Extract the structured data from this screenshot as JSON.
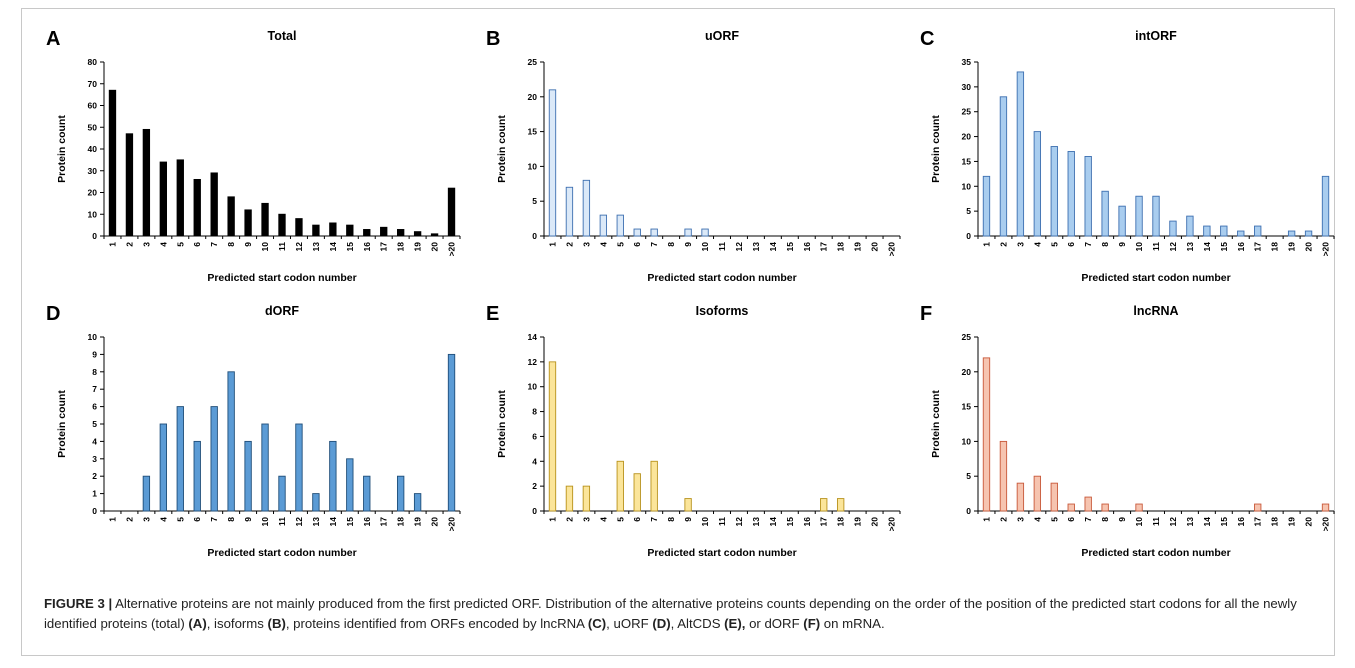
{
  "caption": {
    "label": "FIGURE 3 |",
    "segments": [
      {
        "t": " Alternative proteins are not mainly produced from the first predicted ORF. Distribution of the alternative proteins counts depending on the order of the position of the predicted start codons for all the newly identified proteins (total) ",
        "b": false
      },
      {
        "t": "(A)",
        "b": true
      },
      {
        "t": ", isoforms ",
        "b": false
      },
      {
        "t": "(B)",
        "b": true
      },
      {
        "t": ", proteins identified from ORFs encoded by lncRNA ",
        "b": false
      },
      {
        "t": "(C)",
        "b": true
      },
      {
        "t": ", uORF ",
        "b": false
      },
      {
        "t": "(D)",
        "b": true
      },
      {
        "t": ", AltCDS ",
        "b": false
      },
      {
        "t": "(E),",
        "b": true
      },
      {
        "t": " or dORF ",
        "b": false
      },
      {
        "t": "(F)",
        "b": true
      },
      {
        "t": " on mRNA.",
        "b": false
      }
    ]
  },
  "chart_data": [
    {
      "panel": "A",
      "type": "bar",
      "title": "Total",
      "xlabel": "Predicted start codon number",
      "ylabel": "Protein count",
      "categories": [
        "1",
        "2",
        "3",
        "4",
        "5",
        "6",
        "7",
        "8",
        "9",
        "10",
        "11",
        "12",
        "13",
        "14",
        "15",
        "16",
        "17",
        "18",
        "19",
        "20",
        ">20"
      ],
      "values": [
        67,
        47,
        49,
        34,
        35,
        26,
        29,
        18,
        12,
        15,
        10,
        8,
        5,
        6,
        5,
        3,
        4,
        3,
        2,
        1,
        22
      ],
      "ylim": [
        0,
        80
      ],
      "ytick_step": 10,
      "fill": "#000000",
      "stroke": "#000000"
    },
    {
      "panel": "B",
      "type": "bar",
      "title": "uORF",
      "xlabel": "Predicted start codon number",
      "ylabel": "Protein count",
      "categories": [
        "1",
        "2",
        "3",
        "4",
        "5",
        "6",
        "7",
        "8",
        "9",
        "10",
        "11",
        "12",
        "13",
        "14",
        "15",
        "16",
        "17",
        "18",
        "19",
        "20",
        ">20"
      ],
      "values": [
        21,
        7,
        8,
        3,
        3,
        1,
        1,
        0,
        1,
        1,
        0,
        0,
        0,
        0,
        0,
        0,
        0,
        0,
        0,
        0,
        0
      ],
      "ylim": [
        0,
        25
      ],
      "ytick_step": 5,
      "fill": "#dbe9f8",
      "stroke": "#3d6fb0"
    },
    {
      "panel": "C",
      "type": "bar",
      "title": "intORF",
      "xlabel": "Predicted start codon number",
      "ylabel": "Protein count",
      "categories": [
        "1",
        "2",
        "3",
        "4",
        "5",
        "6",
        "7",
        "8",
        "9",
        "10",
        "11",
        "12",
        "13",
        "14",
        "15",
        "16",
        "17",
        "18",
        "19",
        "20",
        ">20"
      ],
      "values": [
        12,
        28,
        33,
        21,
        18,
        17,
        16,
        9,
        6,
        8,
        8,
        3,
        4,
        2,
        2,
        1,
        2,
        0,
        1,
        1,
        12
      ],
      "ylim": [
        0,
        35
      ],
      "ytick_step": 5,
      "fill": "#a9cdef",
      "stroke": "#3d6fb0"
    },
    {
      "panel": "D",
      "type": "bar",
      "title": "dORF",
      "xlabel": "Predicted start codon number",
      "ylabel": "Protein count",
      "categories": [
        "1",
        "2",
        "3",
        "4",
        "5",
        "6",
        "7",
        "8",
        "9",
        "10",
        "11",
        "12",
        "13",
        "14",
        "15",
        "16",
        "17",
        "18",
        "19",
        "20",
        ">20"
      ],
      "values": [
        0,
        0,
        2,
        5,
        6,
        4,
        6,
        8,
        4,
        5,
        2,
        5,
        1,
        4,
        3,
        2,
        0,
        2,
        1,
        0,
        9
      ],
      "ylim": [
        0,
        10
      ],
      "ytick_step": 1,
      "fill": "#5b9bd5",
      "stroke": "#1f4e79"
    },
    {
      "panel": "E",
      "type": "bar",
      "title": "Isoforms",
      "xlabel": "Predicted start codon number",
      "ylabel": "Protein count",
      "categories": [
        "1",
        "2",
        "3",
        "4",
        "5",
        "6",
        "7",
        "8",
        "9",
        "10",
        "11",
        "12",
        "13",
        "14",
        "15",
        "16",
        "17",
        "18",
        "19",
        "20",
        ">20"
      ],
      "values": [
        12,
        2,
        2,
        0,
        4,
        3,
        4,
        0,
        1,
        0,
        0,
        0,
        0,
        0,
        0,
        0,
        1,
        1,
        0,
        0,
        0
      ],
      "ylim": [
        0,
        14
      ],
      "ytick_step": 2,
      "fill": "#fbe59a",
      "stroke": "#b8921c"
    },
    {
      "panel": "F",
      "type": "bar",
      "title": "lncRNA",
      "xlabel": "Predicted start codon number",
      "ylabel": "Protein count",
      "categories": [
        "1",
        "2",
        "3",
        "4",
        "5",
        "6",
        "7",
        "8",
        "9",
        "10",
        "11",
        "12",
        "13",
        "14",
        "15",
        "16",
        "17",
        "18",
        "19",
        "20",
        ">20"
      ],
      "values": [
        22,
        10,
        4,
        5,
        4,
        1,
        2,
        1,
        0,
        1,
        0,
        0,
        0,
        0,
        0,
        0,
        1,
        0,
        0,
        0,
        1
      ],
      "ylim": [
        0,
        25
      ],
      "ytick_step": 5,
      "fill": "#f6c4b0",
      "stroke": "#c8593a"
    }
  ]
}
